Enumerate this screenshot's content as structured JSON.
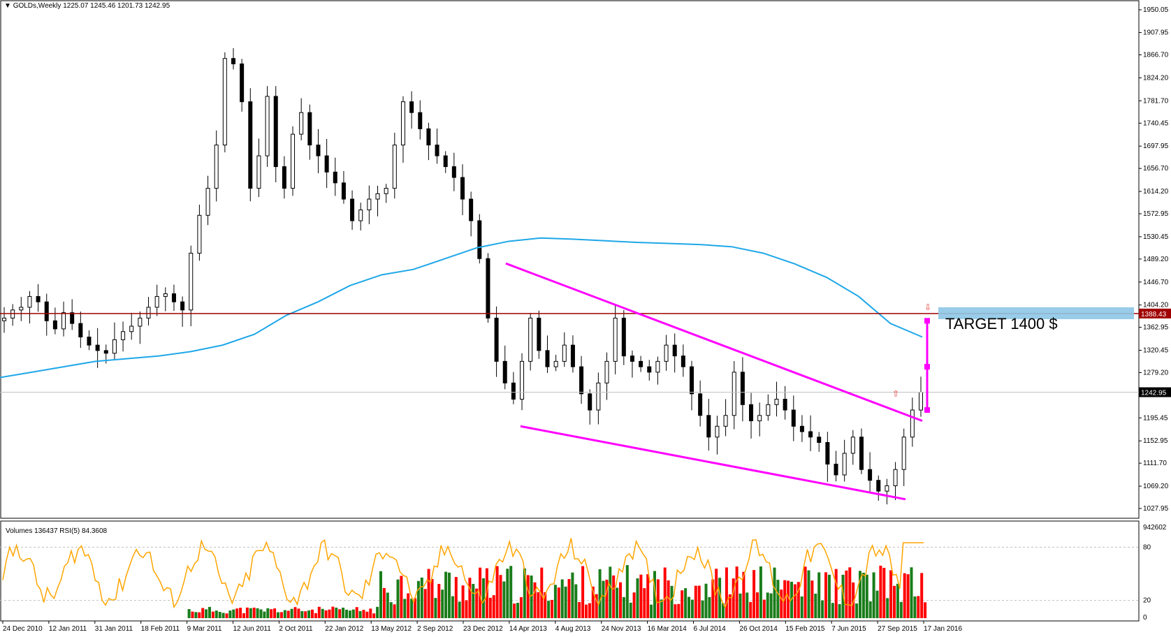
{
  "header": {
    "symbol": "GOLDs,Weekly",
    "ohlc": "1225.07 1245.46 1201.73 1242.95"
  },
  "indicator_header": {
    "volumes": "Volumes 136437",
    "rsi": "RSI(5) 84.3608"
  },
  "annotations": {
    "target_text": "TARGET 1400 $"
  },
  "colors": {
    "bull_volume": "#1a7d1a",
    "bear_volume": "#ff0000",
    "rsi_line": "#ffa500",
    "moving_average": "#1ea7e8",
    "channel": "#ff00ff",
    "resistance": "#a00000",
    "target_zone": "#8ec7e6",
    "candle": "#000000"
  },
  "chart_data": [
    {
      "type": "candlestick",
      "title": "GOLDs,Weekly",
      "ylim": [
        1027.95,
        1950.05
      ],
      "y_ticks": [
        "1950.05",
        "1907.95",
        "1866.70",
        "1824.20",
        "1781.70",
        "1740.45",
        "1697.95",
        "1656.70",
        "1614.20",
        "1572.95",
        "1530.45",
        "1489.20",
        "1446.70",
        "1404.20",
        "1362.95",
        "1320.45",
        "1279.20",
        "1195.45",
        "1152.95",
        "1111.70",
        "1069.20",
        "1027.95"
      ],
      "x_ticks": [
        "24 Dec 2010",
        "12 Jan 2011",
        "31 Jan 2011",
        "18 Feb 2011",
        "9 Mar 2011",
        "12 Jun 2011",
        "2 Oct 2011",
        "22 Jan 2012",
        "13 May 2012",
        "2 Sep 2012",
        "23 Dec 2012",
        "14 Apr 2013",
        "4 Aug 2013",
        "24 Nov 2013",
        "16 Mar 2014",
        "6 Jul 2014",
        "26 Oct 2014",
        "15 Feb 2015",
        "7 Jun 2015",
        "27 Sep 2015",
        "17 Jan 2016"
      ],
      "current_price": "1242.95",
      "resistance_level": "1388.43",
      "close_path": [
        1380,
        1395,
        1400,
        1420,
        1410,
        1375,
        1360,
        1390,
        1370,
        1345,
        1330,
        1320,
        1315,
        1340,
        1355,
        1365,
        1380,
        1400,
        1420,
        1425,
        1410,
        1395,
        1500,
        1570,
        1620,
        1700,
        1860,
        1850,
        1780,
        1620,
        1680,
        1790,
        1660,
        1620,
        1720,
        1760,
        1700,
        1680,
        1650,
        1630,
        1600,
        1560,
        1580,
        1600,
        1610,
        1620,
        1700,
        1780,
        1760,
        1730,
        1700,
        1680,
        1660,
        1640,
        1600,
        1560,
        1490,
        1380,
        1300,
        1260,
        1230,
        1300,
        1380,
        1320,
        1290,
        1300,
        1330,
        1290,
        1240,
        1210,
        1260,
        1300,
        1380,
        1310,
        1300,
        1290,
        1280,
        1300,
        1330,
        1310,
        1290,
        1240,
        1200,
        1160,
        1180,
        1200,
        1280,
        1220,
        1190,
        1200,
        1220,
        1230,
        1210,
        1180,
        1170,
        1160,
        1150,
        1110,
        1090,
        1130,
        1160,
        1100,
        1080,
        1060,
        1070,
        1100,
        1160,
        1210,
        1242.95
      ],
      "moving_average": [
        1270,
        1280,
        1290,
        1300,
        1305,
        1310,
        1318,
        1330,
        1350,
        1385,
        1410,
        1440,
        1460,
        1470,
        1490,
        1510,
        1522,
        1528,
        1526,
        1523,
        1520,
        1518,
        1516,
        1512,
        1500,
        1480,
        1455,
        1420,
        1370,
        1345
      ],
      "channel": {
        "upper": [
          [
            1481,
            "24 Mar 2013"
          ],
          [
            1190,
            "17 Jan 2016"
          ]
        ],
        "lower": [
          [
            1180,
            "30 Jun 2013"
          ],
          [
            1045,
            "31 Jan 2016"
          ]
        ]
      },
      "target_zone": [
        1378,
        1400
      ]
    },
    {
      "type": "bar",
      "title": "Volumes 136437 / RSI(5) 84.3608",
      "y_ticks": [
        "942602",
        "80",
        "20",
        "0"
      ],
      "rsi_last": 84.3608
    }
  ]
}
